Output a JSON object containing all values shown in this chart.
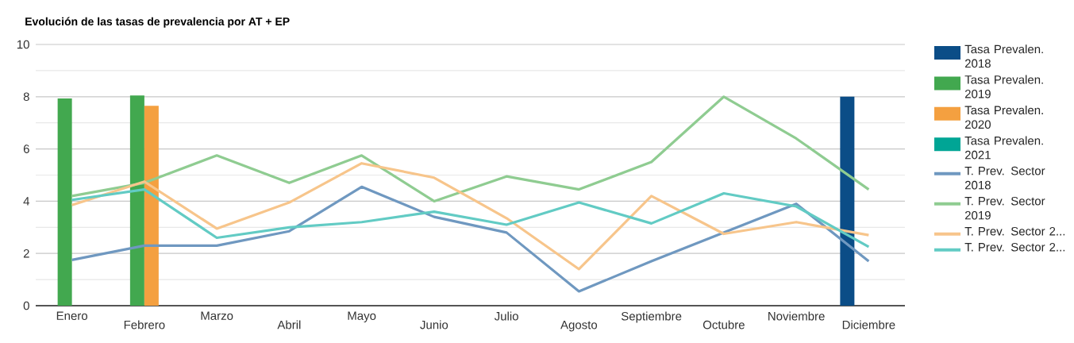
{
  "chart_data": {
    "type": "bar",
    "title": "Evolución de las tasas de prevalencia por AT + EP",
    "categories": [
      "Enero",
      "Febrero",
      "Marzo",
      "Abril",
      "Mayo",
      "Junio",
      "Julio",
      "Agosto",
      "Septiembre",
      "Octubre",
      "Noviembre",
      "Diciembre"
    ],
    "series": [
      {
        "name": "Tasa Prevalen. 2018",
        "color": "#0b4d87",
        "values": [
          null,
          null,
          null,
          null,
          null,
          null,
          null,
          null,
          null,
          null,
          null,
          8.0
        ]
      },
      {
        "name": "Tasa Prevalen. 2019",
        "color": "#42a84f",
        "values": [
          7.93,
          8.05,
          null,
          null,
          null,
          null,
          null,
          null,
          null,
          null,
          null,
          null
        ]
      },
      {
        "name": "Tasa Prevalen. 2020",
        "color": "#f4a040",
        "values": [
          null,
          7.65,
          null,
          null,
          null,
          null,
          null,
          null,
          null,
          null,
          null,
          null
        ]
      },
      {
        "name": "Tasa Prevalen. 2021",
        "color": "#00a595",
        "values": [
          null,
          null,
          null,
          null,
          null,
          null,
          null,
          null,
          null,
          null,
          null,
          null
        ]
      },
      {
        "name": "T. Prev. Sector 2018",
        "type": "line",
        "color": "#6f98c0",
        "values": [
          1.75,
          2.3,
          2.3,
          2.85,
          4.55,
          3.4,
          2.8,
          0.55,
          1.7,
          2.8,
          3.9,
          1.7
        ]
      },
      {
        "name": "T. Prev. Sector 2019",
        "type": "line",
        "color": "#8fcc91",
        "values": [
          4.2,
          4.7,
          5.75,
          4.7,
          5.75,
          4.0,
          4.95,
          4.45,
          5.5,
          8.0,
          6.4,
          4.45
        ]
      },
      {
        "name": "T. Prev. Sector 2...",
        "type": "line",
        "color": "#f7c58b",
        "values": [
          3.85,
          4.75,
          2.95,
          3.95,
          5.45,
          4.9,
          3.35,
          1.4,
          4.2,
          2.75,
          3.2,
          2.7
        ]
      },
      {
        "name": "T. Prev. Sector 2...",
        "type": "line",
        "color": "#62cbc4",
        "values": [
          4.05,
          4.45,
          2.6,
          3.0,
          3.2,
          3.6,
          3.1,
          3.95,
          3.15,
          4.3,
          3.8,
          2.25
        ]
      }
    ],
    "ylim": [
      0,
      10
    ],
    "yticks": [
      0,
      {
        "value": 1,
        "label": null
      },
      2,
      {
        "value": 3,
        "label": null
      },
      4,
      {
        "value": 5,
        "label": null
      },
      6,
      {
        "value": 7,
        "label": null
      },
      8,
      {
        "value": 9,
        "label": null
      },
      10
    ],
    "grid": "y",
    "legend": "right",
    "marker": "none",
    "line_style": "solid"
  }
}
